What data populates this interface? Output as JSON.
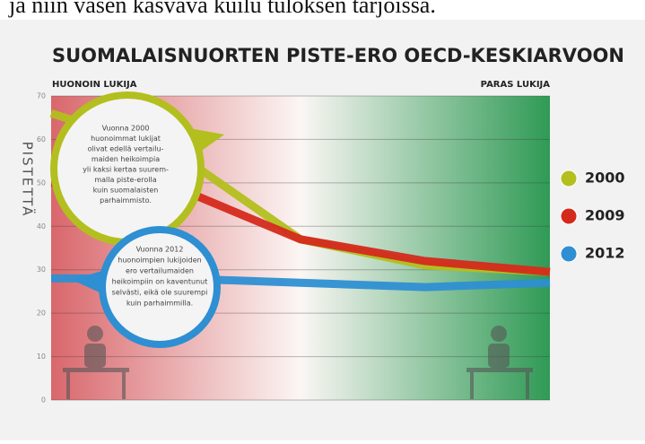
{
  "chart_data": {
    "type": "line",
    "caption": "ja niin vasen kasvava kuilu tuloksen tarjoissa.",
    "title": "SUOMALAISNUORTEN PISTE-ERO OECD-KESKIARVOON",
    "left_label": "HUONOIN LUKIJA",
    "right_label": "PARAS LUKIJA",
    "y_label": "PISTETTÄ",
    "categories": [
      null,
      null,
      null,
      null,
      null
    ],
    "series": [
      {
        "name": "2000",
        "color": "#b3bf1e",
        "values": [
          66,
          57,
          37,
          31,
          29.5
        ]
      },
      {
        "name": "2009",
        "color": "#d42a1c",
        "values": [
          50,
          49,
          37,
          32,
          29.5
        ]
      },
      {
        "name": "2012",
        "color": "#2e8fd2",
        "values": [
          28,
          28,
          27,
          26,
          27
        ]
      }
    ],
    "ylim": [
      0,
      70
    ],
    "yticks": [
      0,
      10,
      20,
      30,
      40,
      50,
      60,
      70
    ],
    "grid": true,
    "annotations": [
      {
        "lines": [
          "Vuonna 2000",
          "huonoimmat lukijat",
          "olivat edellä vertailu-",
          "maiden heikoimpia",
          "yli kaksi kertaa suurem-",
          "malla piste-erolla",
          "kuin suomalaisten",
          "parhaimmisto."
        ],
        "color": "#b3bf1e"
      },
      {
        "lines": [
          "Vuonna 2012",
          "huonoimpien lukijoiden",
          "ero vertailumaiden",
          "heikoimpiin on kaventunut",
          "selvästi, eikä ole suurempi",
          "kuin parhaimmilla."
        ],
        "color": "#2e8fd2"
      }
    ]
  }
}
